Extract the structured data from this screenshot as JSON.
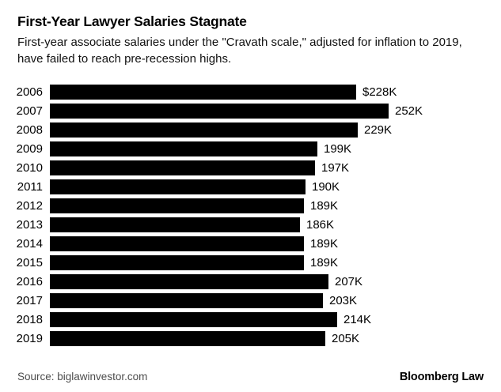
{
  "header": {
    "title": "First-Year Lawyer Salaries Stagnate",
    "subtitle": "First-year associate salaries under the \"Cravath scale,\" adjusted for inflation to 2019, have failed to reach pre-recession highs."
  },
  "chart_data": {
    "type": "bar",
    "orientation": "horizontal",
    "title": "First-Year Lawyer Salaries Stagnate",
    "subtitle": "First-year associate salaries under the \"Cravath scale,\" adjusted for inflation to 2019, have failed to reach pre-recession highs.",
    "categories": [
      "2006",
      "2007",
      "2008",
      "2009",
      "2010",
      "2011",
      "2012",
      "2013",
      "2014",
      "2015",
      "2016",
      "2017",
      "2018",
      "2019"
    ],
    "values": [
      228,
      252,
      229,
      199,
      197,
      190,
      189,
      186,
      189,
      189,
      207,
      203,
      214,
      205
    ],
    "value_labels": [
      "$228K",
      "252K",
      "229K",
      "199K",
      "197K",
      "190K",
      "189K",
      "186K",
      "189K",
      "189K",
      "207K",
      "203K",
      "214K",
      "205K"
    ],
    "xlabel": "",
    "ylabel": "",
    "xlim": [
      0,
      252
    ],
    "grid": false,
    "legend": false,
    "bar_color": "#000000"
  },
  "footer": {
    "source": "Source: biglawinvestor.com",
    "brand": "Bloomberg Law"
  },
  "colors": {
    "background": "#ffffff",
    "bar": "#000000",
    "title_text": "#000000",
    "subtitle_text": "#111111",
    "source_text": "#4d4d4d"
  }
}
